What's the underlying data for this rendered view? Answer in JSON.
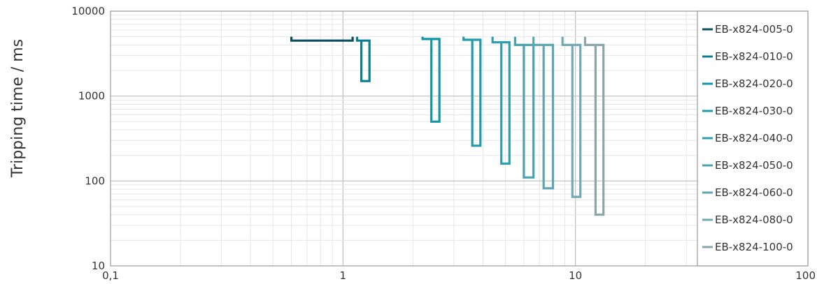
{
  "chart_data": {
    "type": "line",
    "title": "",
    "xlabel": "",
    "ylabel": "Tripping time / ms",
    "xscale": "log",
    "yscale": "log",
    "xlim": [
      0.1,
      100
    ],
    "ylim": [
      10,
      10000
    ],
    "grid": true,
    "legend_position": "right",
    "x_tick_labels": [
      "0,1",
      "1",
      "10",
      "100"
    ],
    "y_tick_labels": [
      "10",
      "100",
      "1000",
      "10000"
    ],
    "series": [
      {
        "name": "EB-x824-005-0",
        "color": "#0b4f5f",
        "x": [
          0.6,
          0.6,
          1.1,
          1.1
        ],
        "y": [
          5000,
          4500,
          4500,
          5000
        ]
      },
      {
        "name": "EB-x824-010-0",
        "color": "#0a7e90",
        "x": [
          1.15,
          1.15,
          1.3,
          1.3,
          1.2,
          1.2
        ],
        "y": [
          5000,
          4500,
          4500,
          1500,
          1500,
          4500
        ]
      },
      {
        "name": "EB-x824-020-0",
        "color": "#1196a6",
        "x": [
          2.2,
          2.2,
          2.6,
          2.6,
          2.4,
          2.4
        ],
        "y": [
          5000,
          4700,
          4700,
          500,
          500,
          4700
        ]
      },
      {
        "name": "EB-x824-030-0",
        "color": "#1f9cab",
        "x": [
          3.3,
          3.3,
          3.9,
          3.9,
          3.6,
          3.6
        ],
        "y": [
          5000,
          4600,
          4600,
          260,
          260,
          4600
        ]
      },
      {
        "name": "EB-x824-040-0",
        "color": "#2f9fae",
        "x": [
          4.4,
          4.4,
          5.2,
          5.2,
          4.8,
          4.8
        ],
        "y": [
          5000,
          4300,
          4300,
          160,
          160,
          4300
        ]
      },
      {
        "name": "EB-x824-050-0",
        "color": "#4ba3b0",
        "x": [
          5.5,
          5.5,
          6.6,
          6.6,
          6.0,
          6.0
        ],
        "y": [
          5000,
          4000,
          4000,
          110,
          110,
          4000
        ]
      },
      {
        "name": "EB-x824-060-0",
        "color": "#5ea6b1",
        "x": [
          6.6,
          6.6,
          8.0,
          8.0,
          7.3,
          7.3
        ],
        "y": [
          5000,
          4000,
          4000,
          82,
          82,
          4000
        ]
      },
      {
        "name": "EB-x824-080-0",
        "color": "#72a9b2",
        "x": [
          8.8,
          8.8,
          10.5,
          10.5,
          9.7,
          9.7
        ],
        "y": [
          5000,
          4000,
          4000,
          65,
          65,
          4000
        ]
      },
      {
        "name": "EB-x824-100-0",
        "color": "#8aa6aa",
        "x": [
          11.0,
          11.0,
          13.2,
          13.2,
          12.2,
          12.2
        ],
        "y": [
          5000,
          4000,
          4000,
          40,
          40,
          4000
        ]
      }
    ]
  }
}
